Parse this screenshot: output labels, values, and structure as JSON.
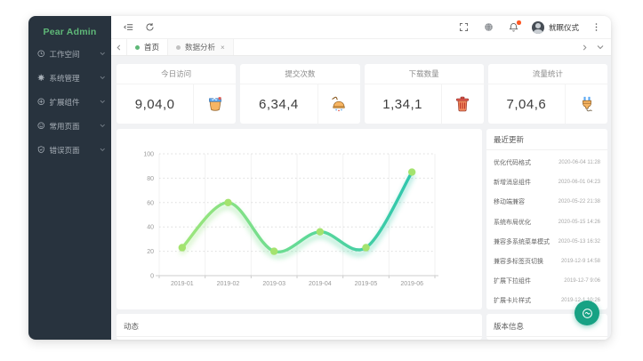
{
  "app": {
    "logo": "Pear Admin",
    "accent_green": "#5FB878",
    "sidebar_bg": "#28333E"
  },
  "sidebar": {
    "items": [
      {
        "label": "工作空间",
        "icon": "workspace-icon"
      },
      {
        "label": "系统管理",
        "icon": "system-icon"
      },
      {
        "label": "扩展组件",
        "icon": "extension-icon"
      },
      {
        "label": "常用页面",
        "icon": "pages-icon"
      },
      {
        "label": "错误页面",
        "icon": "error-icon"
      }
    ]
  },
  "header": {
    "user": {
      "name": "就眠仪式"
    }
  },
  "tabs": {
    "items": [
      {
        "label": "首页",
        "active": true,
        "closable": false
      },
      {
        "label": "数据分析",
        "active": false,
        "closable": true
      }
    ]
  },
  "stats": [
    {
      "title": "今日访问",
      "value": "9,04,0",
      "icon": "paint-bucket-icon"
    },
    {
      "title": "提交次数",
      "value": "6,34,4",
      "icon": "shower-icon"
    },
    {
      "title": "下载数量",
      "value": "1,34,1",
      "icon": "trash-icon"
    },
    {
      "title": "流量统计",
      "value": "7,04,6",
      "icon": "plug-icon"
    }
  ],
  "chart_data": {
    "type": "line",
    "categories": [
      "2019-01",
      "2019-02",
      "2019-03",
      "2019-04",
      "2019-05",
      "2019-06"
    ],
    "values": [
      23,
      60,
      20,
      36,
      23,
      85
    ],
    "title": "",
    "xlabel": "",
    "ylabel": "",
    "ylim": [
      0,
      100
    ],
    "yticks": [
      0,
      20,
      40,
      60,
      80,
      100
    ],
    "grid": true,
    "smooth": true,
    "line_gradient": [
      "#9EE67A",
      "#5ED998",
      "#2FC6AE"
    ],
    "marker_color": "#A4E36E"
  },
  "recent": {
    "title": "最近更新",
    "items": [
      {
        "name": "优化代码格式",
        "date": "2020-06-04 11:28"
      },
      {
        "name": "新增消息组件",
        "date": "2020-06-01 04:23"
      },
      {
        "name": "移动端兼容",
        "date": "2020-05-22 21:38"
      },
      {
        "name": "系统布局优化",
        "date": "2020-05-15 14:26"
      },
      {
        "name": "兼容多系统菜单模式",
        "date": "2020-05-13 16:32"
      },
      {
        "name": "兼容多标签页切换",
        "date": "2019-12-9 14:58"
      },
      {
        "name": "扩展下拉组件",
        "date": "2019-12-7 9:06"
      },
      {
        "name": "扩展卡片样式",
        "date": "2019-12-1 10:26"
      }
    ]
  },
  "sections": {
    "activity": "动态",
    "version": "版本信息"
  }
}
